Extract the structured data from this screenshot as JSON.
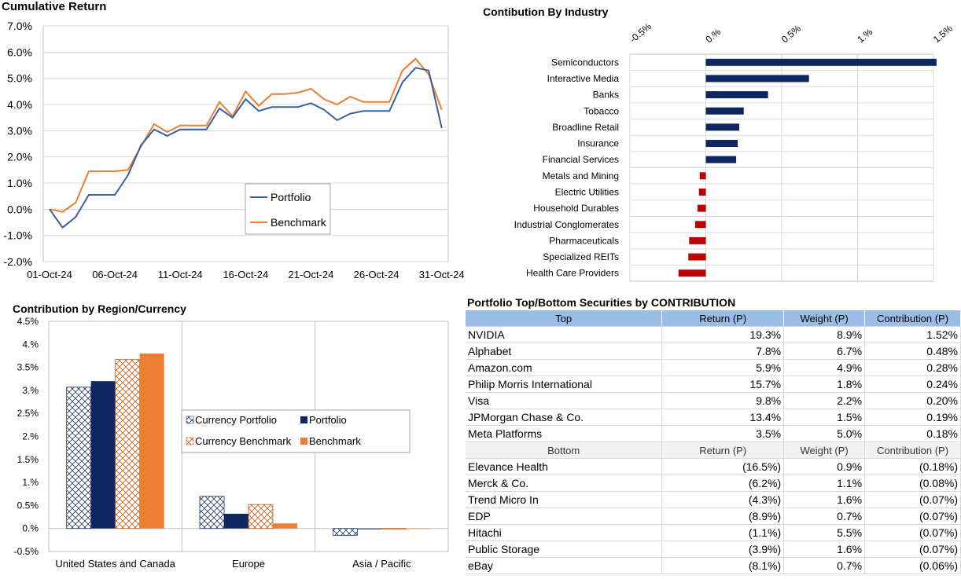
{
  "cumulative": {
    "title": "Cumulative Return",
    "legend": [
      "Portfolio",
      "Benchmark"
    ],
    "colors": {
      "portfolio": "#3a5f9e",
      "benchmark": "#ed7d31"
    },
    "chart_data": {
      "type": "line",
      "title": "Cumulative Return",
      "x_ticks": [
        "01-Oct-24",
        "06-Oct-24",
        "11-Oct-24",
        "16-Oct-24",
        "21-Oct-24",
        "26-Oct-24",
        "31-Oct-24"
      ],
      "y_ticks": [
        "7.0%",
        "6.0%",
        "5.0%",
        "4.0%",
        "3.0%",
        "2.0%",
        "1.0%",
        "0.0%",
        "-1.0%",
        "-2.0%"
      ],
      "ylim": [
        -2.0,
        7.0
      ],
      "x_days": [
        1,
        2,
        3,
        4,
        5,
        6,
        7,
        8,
        9,
        10,
        11,
        12,
        13,
        14,
        15,
        16,
        17,
        18,
        19,
        20,
        21,
        22,
        23,
        24,
        25,
        26,
        27,
        28,
        29,
        30,
        31
      ],
      "series": [
        {
          "name": "Portfolio",
          "values": [
            0.0,
            -0.7,
            -0.3,
            0.55,
            0.55,
            0.55,
            1.3,
            2.45,
            3.05,
            2.8,
            3.05,
            3.05,
            3.05,
            3.85,
            3.5,
            4.2,
            3.75,
            3.9,
            3.9,
            3.9,
            4.05,
            3.8,
            3.4,
            3.65,
            3.75,
            3.75,
            3.75,
            4.85,
            5.4,
            5.3,
            3.1
          ]
        },
        {
          "name": "Benchmark",
          "values": [
            0.0,
            -0.1,
            0.25,
            1.45,
            1.45,
            1.45,
            1.5,
            2.4,
            3.25,
            2.95,
            3.2,
            3.2,
            3.2,
            4.1,
            3.55,
            4.5,
            3.95,
            4.4,
            4.4,
            4.45,
            4.6,
            4.2,
            4.0,
            4.3,
            4.1,
            4.1,
            4.1,
            5.3,
            5.75,
            5.15,
            3.8
          ]
        }
      ]
    }
  },
  "industry": {
    "title": "Contibution By Industry",
    "colors": {
      "positive": "#0e2760",
      "negative": "#c00000"
    },
    "chart_data": {
      "type": "bar",
      "orientation": "horizontal",
      "title": "Contibution By Industry",
      "x_ticks": [
        "-0.5%",
        "0.%",
        "0.5%",
        "1.%",
        "1.5%"
      ],
      "xlim": [
        -0.5,
        1.5
      ],
      "categories": [
        "Semiconductors",
        "Interactive Media",
        "Banks",
        "Tobacco",
        "Broadline Retail",
        "Insurance",
        "Financial Services",
        "Metals and Mining",
        "Electric Utilities",
        "Household Durables",
        "Industrial Conglomerates",
        "Pharmaceuticals",
        "Specialized REITs",
        "Health Care Providers"
      ],
      "values": [
        1.52,
        0.68,
        0.41,
        0.25,
        0.22,
        0.21,
        0.2,
        -0.04,
        -0.045,
        -0.055,
        -0.07,
        -0.11,
        -0.115,
        -0.18
      ]
    }
  },
  "region": {
    "title": "Contribution by Region/Currency",
    "legend": [
      "Currency Portfolio",
      "Portfolio",
      "Currency Benchmark",
      "Benchmark"
    ],
    "colors": {
      "navy": "#0e2760",
      "orange": "#ed7d31",
      "hatch_blue": "#1f3864",
      "hatch_orange": "#c55a11"
    },
    "chart_data": {
      "type": "bar",
      "title": "Contribution by Region/Currency",
      "categories": [
        "United States and Canada",
        "Europe",
        "Asia / Pacific"
      ],
      "y_ticks": [
        "4.5%",
        "4.%",
        "3.5%",
        "3.%",
        "2.5%",
        "2.%",
        "1.5%",
        "1.%",
        "0.5%",
        "0.%",
        "-0.5%"
      ],
      "ylim": [
        -0.5,
        4.5
      ],
      "series": [
        {
          "name": "Currency Portfolio",
          "values": [
            3.07,
            0.7,
            -0.15
          ]
        },
        {
          "name": "Portfolio",
          "values": [
            3.2,
            0.32,
            0.0
          ]
        },
        {
          "name": "Currency Benchmark",
          "values": [
            3.67,
            0.52,
            -0.01
          ]
        },
        {
          "name": "Benchmark",
          "values": [
            3.8,
            0.11,
            -0.01
          ]
        }
      ]
    }
  },
  "securities": {
    "title": "Portfolio Top/Bottom Securities by CONTRIBUTION",
    "top_headers": [
      "Top",
      "Return (P)",
      "Weight (P)",
      "Contribution (P)"
    ],
    "top_rows": [
      [
        "NVIDIA",
        "19.3%",
        "8.9%",
        "1.52%"
      ],
      [
        "Alphabet",
        "7.8%",
        "6.7%",
        "0.48%"
      ],
      [
        "Amazon.com",
        "5.9%",
        "4.9%",
        "0.28%"
      ],
      [
        "Philip Morris International",
        "15.7%",
        "1.8%",
        "0.24%"
      ],
      [
        "Visa",
        "9.8%",
        "2.2%",
        "0.20%"
      ],
      [
        "JPMorgan Chase & Co.",
        "13.4%",
        "1.5%",
        "0.19%"
      ],
      [
        "Meta Platforms",
        "3.5%",
        "5.0%",
        "0.18%"
      ]
    ],
    "bottom_headers": [
      "Bottom",
      "Return (P)",
      "Weight (P)",
      "Contribution (P)"
    ],
    "bottom_rows": [
      [
        "Elevance Health",
        "(16.5%)",
        "0.9%",
        "(0.18%)"
      ],
      [
        "Merck & Co.",
        "(6.2%)",
        "1.1%",
        "(0.08%)"
      ],
      [
        "Trend Micro In",
        "(4.3%)",
        "1.6%",
        "(0.07%)"
      ],
      [
        "EDP",
        "(8.9%)",
        "0.7%",
        "(0.07%)"
      ],
      [
        "Hitachi",
        "(1.1%)",
        "5.5%",
        "(0.07%)"
      ],
      [
        "Public Storage",
        "(3.9%)",
        "1.6%",
        "(0.07%)"
      ],
      [
        "eBay",
        "(8.1%)",
        "0.7%",
        "(0.06%)"
      ]
    ]
  }
}
